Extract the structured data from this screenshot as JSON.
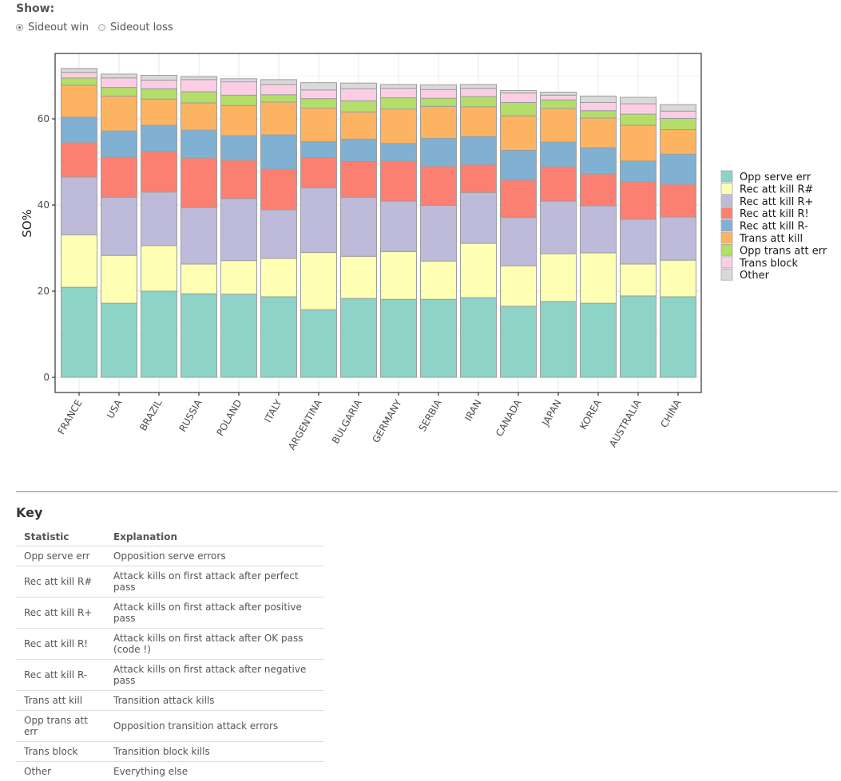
{
  "controls": {
    "show_label": "Show:",
    "options": [
      {
        "label": "Sideout win",
        "checked": true
      },
      {
        "label": "Sideout loss",
        "checked": false
      }
    ]
  },
  "chart_data": {
    "type": "bar",
    "stacked": true,
    "title": "",
    "xlabel": "",
    "ylabel": "SO%",
    "ylim": [
      0,
      75
    ],
    "yticks": [
      0,
      20,
      40,
      60
    ],
    "grid": true,
    "legend_position": "right",
    "categories": [
      "FRANCE",
      "USA",
      "BRAZIL",
      "RUSSIA",
      "POLAND",
      "ITALY",
      "ARGENTINA",
      "BULGARIA",
      "GERMANY",
      "SERBIA",
      "IRAN",
      "CANADA",
      "JAPAN",
      "KOREA",
      "AUSTRALIA",
      "CHINA"
    ],
    "series": [
      {
        "name": "Opp serve err",
        "color": "#8DD3C7",
        "values": [
          20.9,
          17.2,
          20.0,
          19.4,
          19.3,
          18.7,
          15.7,
          18.3,
          18.1,
          18.1,
          18.5,
          16.5,
          17.6,
          17.2,
          18.9,
          18.7
        ]
      },
      {
        "name": "Rec att kill R#",
        "color": "#FFFFB3",
        "values": [
          12.2,
          11.1,
          10.6,
          6.9,
          7.8,
          8.9,
          13.3,
          9.8,
          11.1,
          8.9,
          12.6,
          9.4,
          11.1,
          11.7,
          7.4,
          8.5
        ]
      },
      {
        "name": "Rec att kill R+",
        "color": "#BEBADA",
        "values": [
          13.4,
          13.5,
          12.4,
          13.1,
          14.4,
          11.3,
          15.0,
          13.7,
          11.7,
          12.9,
          11.8,
          11.2,
          12.2,
          10.9,
          10.4,
          10.0
        ]
      },
      {
        "name": "Rec att kill R!",
        "color": "#FB8072",
        "values": [
          8.0,
          9.3,
          9.4,
          11.5,
          8.9,
          9.4,
          7.0,
          8.3,
          9.3,
          9.1,
          6.5,
          8.7,
          8.0,
          7.4,
          8.7,
          7.6
        ]
      },
      {
        "name": "Rec att kill R-",
        "color": "#80B1D3",
        "values": [
          5.9,
          6.1,
          6.1,
          6.5,
          5.7,
          8.0,
          3.7,
          5.2,
          4.1,
          6.5,
          6.5,
          6.9,
          5.7,
          6.1,
          4.8,
          7.0
        ]
      },
      {
        "name": "Trans att kill",
        "color": "#FDB462",
        "values": [
          7.4,
          8.1,
          6.1,
          6.3,
          7.0,
          7.6,
          7.8,
          6.3,
          8.0,
          7.4,
          6.9,
          8.0,
          7.8,
          6.9,
          8.3,
          5.7
        ]
      },
      {
        "name": "Opp trans att err",
        "color": "#B3DE69",
        "values": [
          1.7,
          2.0,
          2.4,
          2.6,
          2.4,
          1.7,
          2.2,
          2.6,
          2.6,
          1.9,
          2.4,
          3.1,
          2.0,
          1.7,
          2.6,
          2.6
        ]
      },
      {
        "name": "Trans block",
        "color": "#FCCDE5",
        "values": [
          1.3,
          2.2,
          2.0,
          2.8,
          3.1,
          2.4,
          2.0,
          2.8,
          2.2,
          2.0,
          1.9,
          2.2,
          1.1,
          1.9,
          2.4,
          1.7
        ]
      },
      {
        "name": "Other",
        "color": "#D9D9D9",
        "values": [
          0.9,
          0.9,
          1.1,
          0.7,
          0.7,
          1.1,
          1.7,
          1.3,
          0.9,
          1.1,
          0.9,
          0.6,
          0.7,
          1.5,
          1.5,
          1.5
        ]
      }
    ]
  },
  "key": {
    "title": "Key",
    "headers": [
      "Statistic",
      "Explanation"
    ],
    "rows": [
      [
        "Opp serve err",
        "Opposition serve errors"
      ],
      [
        "Rec att kill R#",
        "Attack kills on first attack after perfect pass"
      ],
      [
        "Rec att kill R+",
        "Attack kills on first attack after positive pass"
      ],
      [
        "Rec att kill R!",
        "Attack kills on first attack after OK pass (code !)"
      ],
      [
        "Rec att kill R-",
        "Attack kills on first attack after negative pass"
      ],
      [
        "Trans att kill",
        "Transition attack kills"
      ],
      [
        "Opp trans att err",
        "Opposition transition attack errors"
      ],
      [
        "Trans block",
        "Transition block kills"
      ],
      [
        "Other",
        "Everything else"
      ]
    ]
  }
}
